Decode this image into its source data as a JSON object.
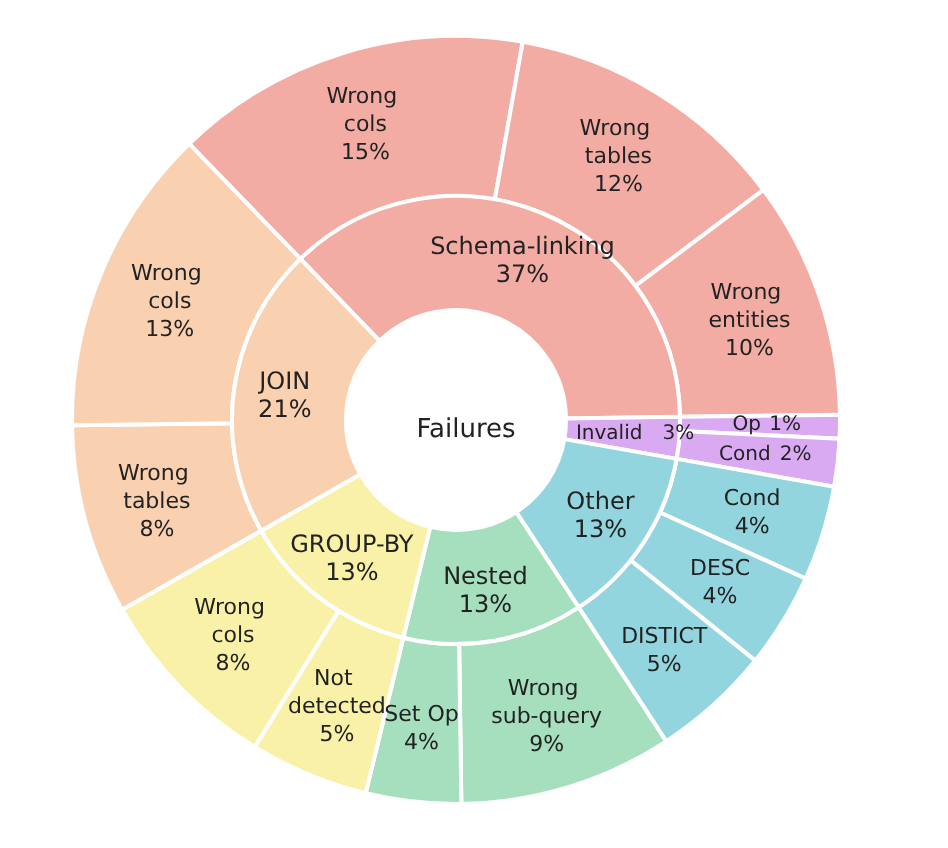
{
  "chart_data": [
    {
      "type": "donut",
      "title": "Failures",
      "categories": [
        "Schema-linking",
        "Invalid",
        "Other",
        "Nested",
        "GROUP-BY",
        "JOIN"
      ],
      "values": [
        37,
        3,
        13,
        13,
        13,
        21
      ],
      "value_labels": [
        "37%",
        "3%",
        "13%",
        "13%",
        "13%",
        "21%"
      ],
      "colors": [
        "#f3aca3",
        "#d9a9f2",
        "#93d5df",
        "#a6dfbd",
        "#faf1a9",
        "#f9d0b0"
      ]
    },
    {
      "type": "donut",
      "categories": [
        "Wrong cols",
        "Wrong tables",
        "Wrong entities",
        "Op",
        "Cond",
        "Cond",
        "DESC",
        "DISTICT",
        "Wrong sub-query",
        "Set Op",
        "Not detected",
        "Wrong cols",
        "Wrong tables",
        "Wrong cols"
      ],
      "values": [
        15,
        12,
        10,
        1,
        2,
        4,
        4,
        5,
        9,
        4,
        5,
        8,
        8,
        13
      ],
      "value_labels": [
        "15%",
        "12%",
        "10%",
        "1%",
        "2%",
        "4%",
        "4%",
        "5%",
        "9%",
        "4%",
        "5%",
        "8%",
        "8%",
        "13%"
      ],
      "colors": [
        "#f3aca3",
        "#f3aca3",
        "#f3aca3",
        "#d9a9f2",
        "#d9a9f2",
        "#93d5df",
        "#93d5df",
        "#93d5df",
        "#a6dfbd",
        "#a6dfbd",
        "#faf1a9",
        "#faf1a9",
        "#f9d0b0",
        "#f9d0b0"
      ]
    }
  ]
}
